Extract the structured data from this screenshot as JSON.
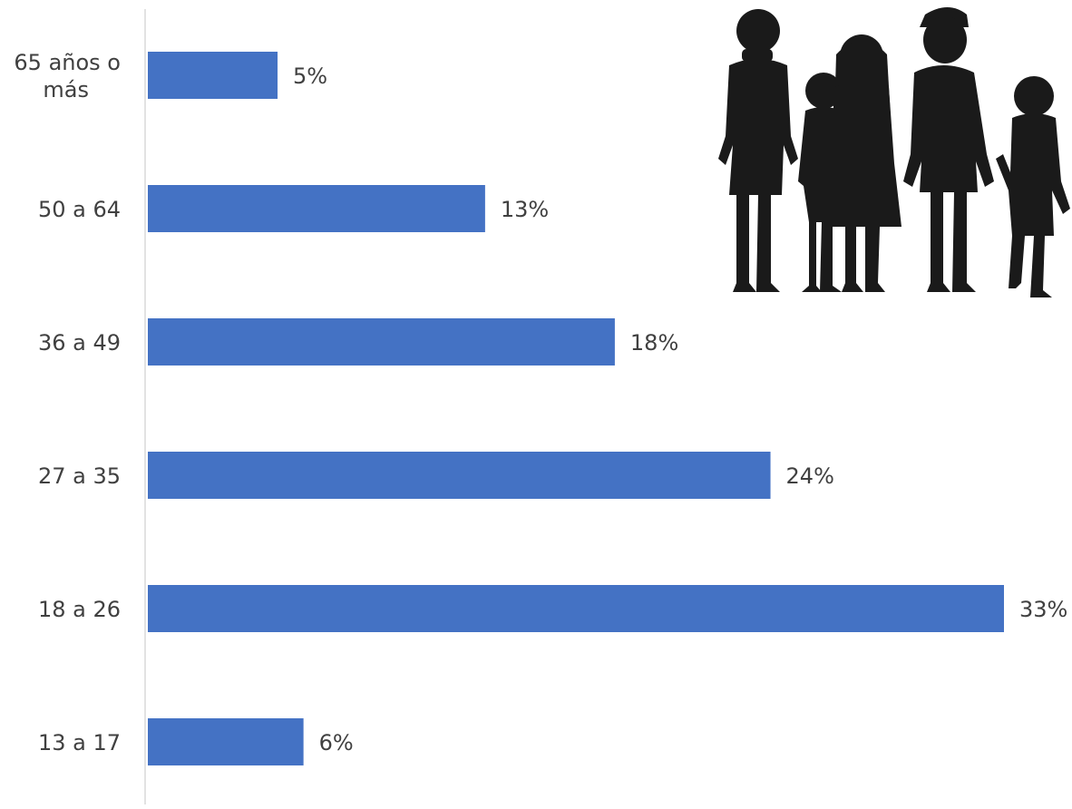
{
  "chart_data": {
    "type": "bar",
    "orientation": "horizontal",
    "title": "",
    "xlabel": "",
    "ylabel": "",
    "categories": [
      "65 años o más",
      "50 a 64",
      "36 a 49",
      "27 a 35",
      "18 a 26",
      "13 a 17"
    ],
    "category_label_lines": [
      [
        "65 años o",
        "más"
      ],
      [
        "50 a 64"
      ],
      [
        "36 a 49"
      ],
      [
        "27 a 35"
      ],
      [
        "18 a 26"
      ],
      [
        "13 a 17"
      ]
    ],
    "values": [
      5,
      13,
      18,
      24,
      33,
      6
    ],
    "data_labels": [
      "5%",
      "13%",
      "18%",
      "24%",
      "33%",
      "6%"
    ],
    "value_unit": "%",
    "xlim": [
      0,
      33
    ],
    "grid": false,
    "legend": "none",
    "colors": {
      "bar": "#4472C4",
      "axis": "#d9d9d9",
      "text": "#404040",
      "silhouette": "#1a1a1a"
    },
    "decoration": {
      "icon": "family-silhouette-icon"
    }
  }
}
